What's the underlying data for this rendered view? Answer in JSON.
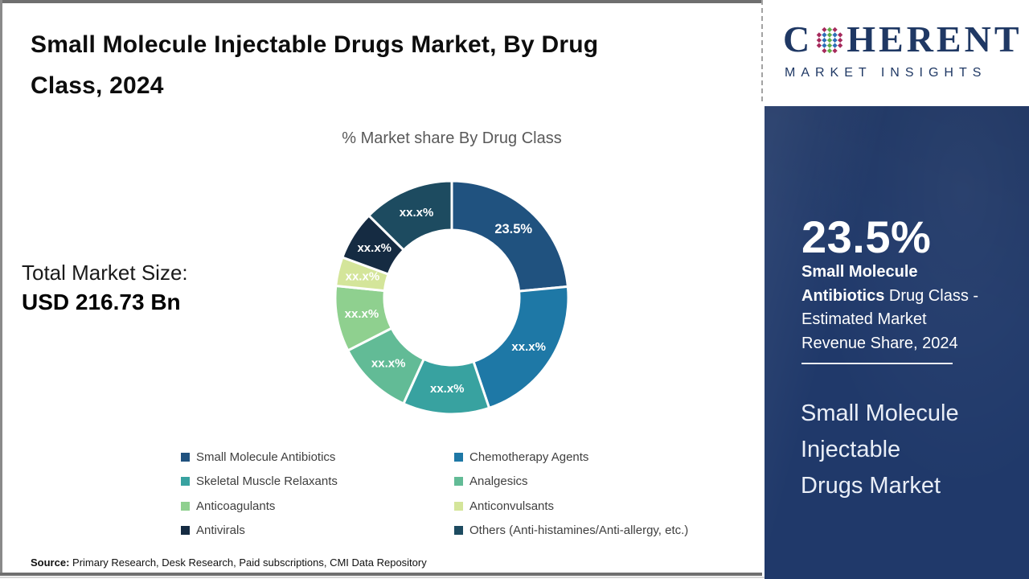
{
  "header": {
    "title": "Small Molecule Injectable Drugs Market, By Drug\nClass, 2024"
  },
  "chart_data": {
    "type": "pie",
    "donut": true,
    "title": "% Market share By Drug Class",
    "start_angle_deg": 0,
    "direction": "clockwise",
    "legend_position": "bottom",
    "segments": [
      {
        "name": "Small Molecule Antibiotics",
        "label": "23.5%",
        "value": 23.5,
        "color": "#20527F"
      },
      {
        "name": "Chemotherapy Agents",
        "label": "xx.x%",
        "value": 21.3,
        "color": "#1E78A6"
      },
      {
        "name": "Skeletal Muscle Relaxants",
        "label": "xx.x%",
        "value": 12.0,
        "color": "#38A2A0"
      },
      {
        "name": "Analgesics",
        "label": "xx.x%",
        "value": 10.7,
        "color": "#62BB96"
      },
      {
        "name": "Anticoagulants",
        "label": "xx.x%",
        "value": 9.1,
        "color": "#8FD08F"
      },
      {
        "name": "Anticonvulsants",
        "label": "xx.x%",
        "value": 4.0,
        "color": "#D4E59A"
      },
      {
        "name": "Antivirals",
        "label": "xx.x%",
        "value": 6.8,
        "color": "#152B42"
      },
      {
        "name": "Others (Anti-histamines/Anti-allergy, etc.)",
        "label": "xx.x%",
        "value": 12.6,
        "color": "#1D4B60"
      }
    ]
  },
  "market": {
    "size_label": "Total Market Size:",
    "size_value": "USD 216.73 Bn"
  },
  "source": {
    "prefix": "Source:",
    "text": " Primary Research, Desk Research, Paid subscriptions, CMI Data Repository"
  },
  "sidebar": {
    "logo": {
      "word_start": "C",
      "word_end": "HERENT",
      "subtitle": "MARKET INSIGHTS",
      "globe_colors": {
        "green": "#5FAE49",
        "blue": "#2E6FB7",
        "crimson": "#A62A5C"
      }
    },
    "stat_value": "23.5%",
    "stat_highlight": "Small Molecule Antibiotics",
    "stat_rest": " Drug Class - Estimated Market Revenue Share, 2024",
    "market_name": "Small Molecule\nInjectable\nDrugs Market"
  },
  "colors": {
    "brand_navy": "#1F3864",
    "panel_background": "#20396A",
    "chart_title_gray": "#595959"
  }
}
